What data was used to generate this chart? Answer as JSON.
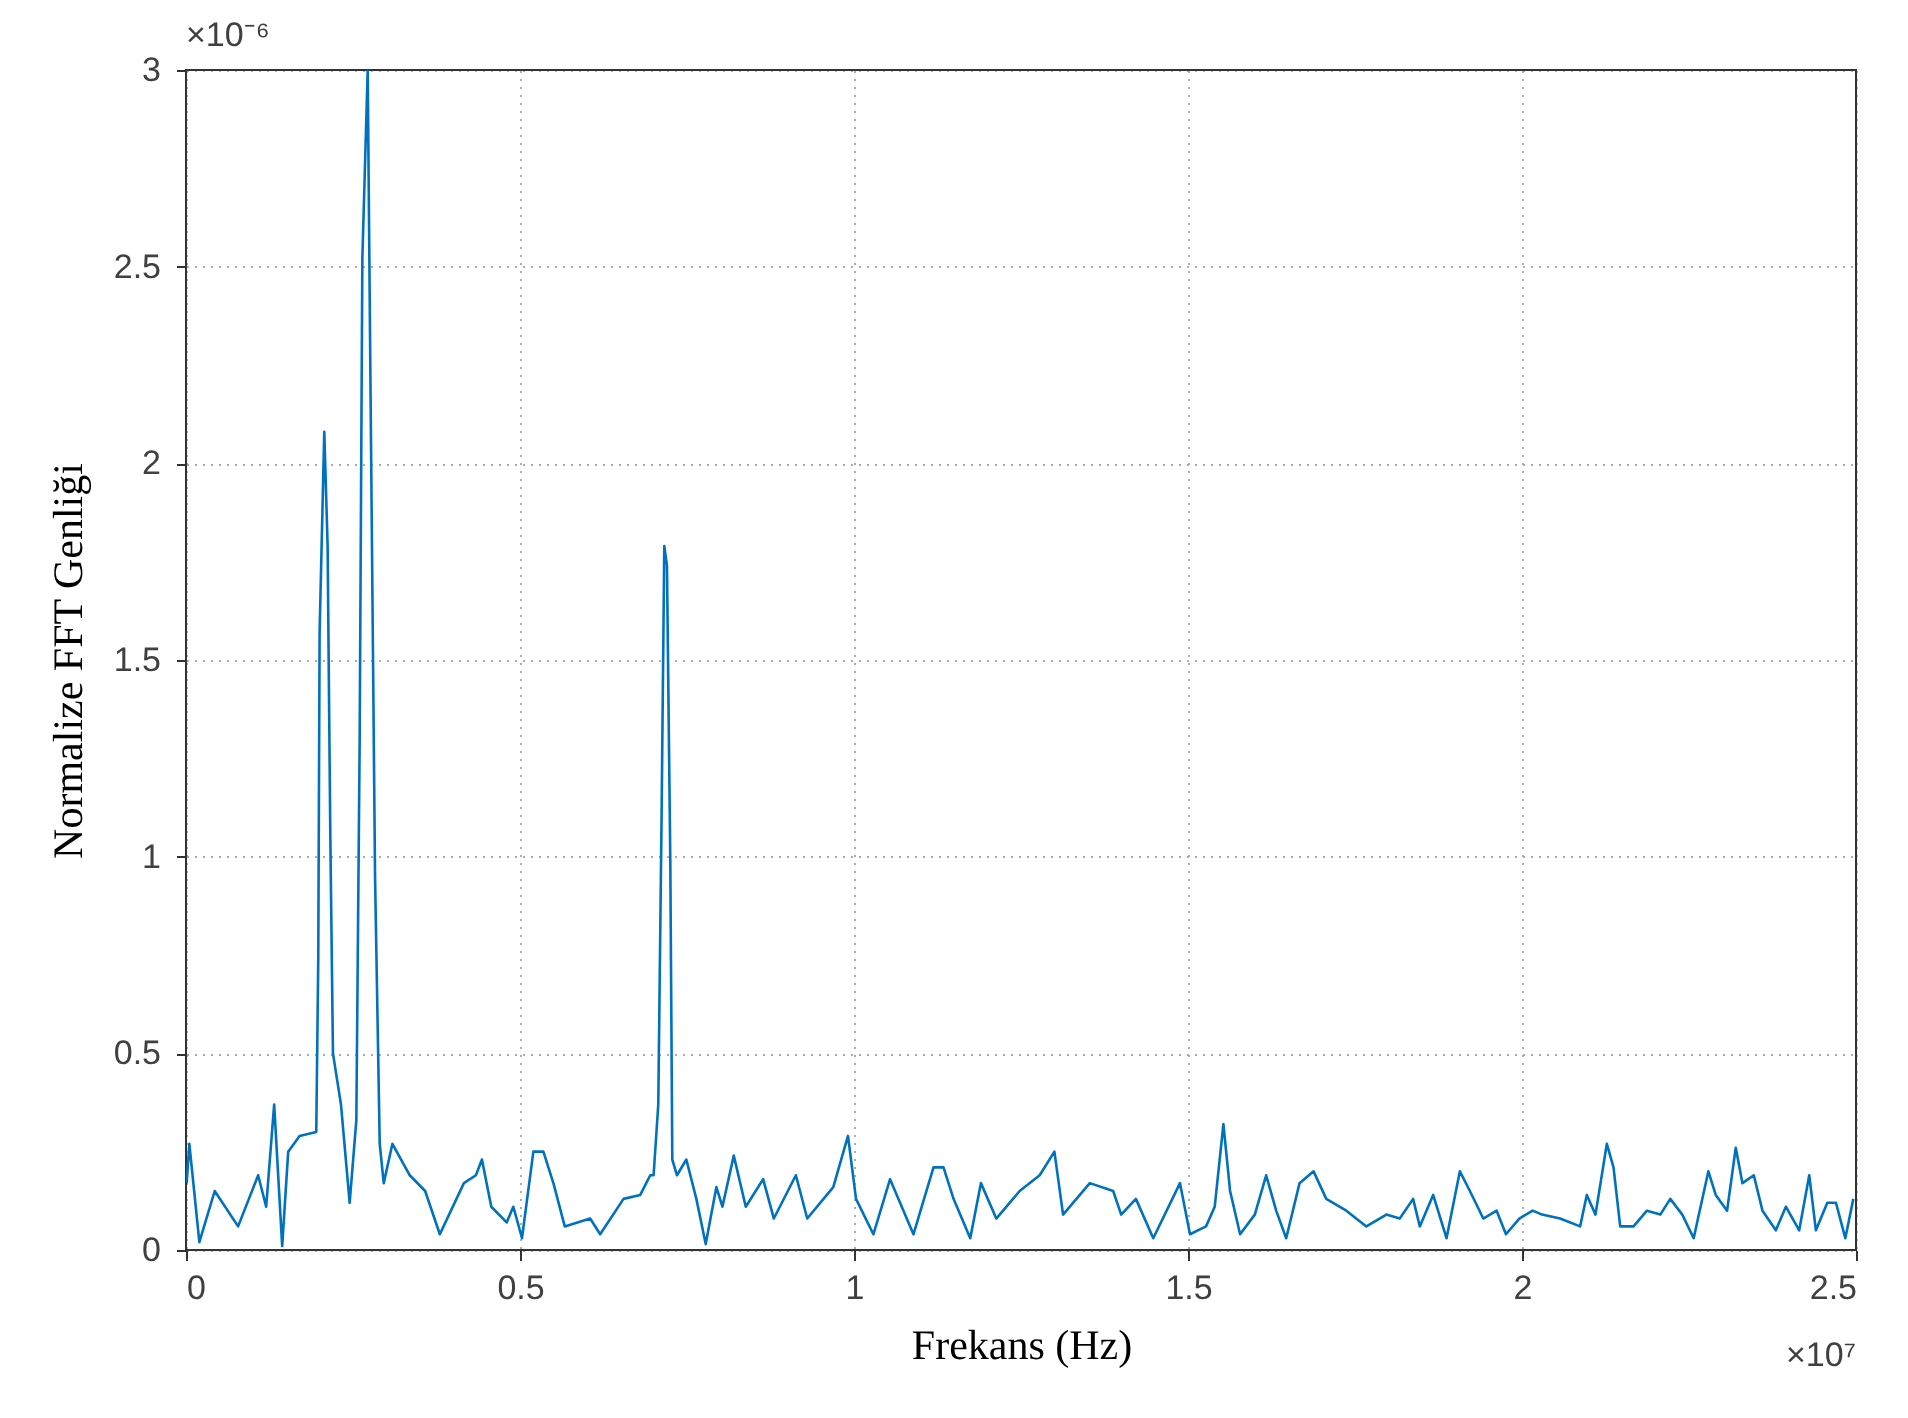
{
  "chart_data": {
    "type": "line",
    "xlabel": "Frekans (Hz)",
    "ylabel": "Normalize FFT Genliği",
    "annotations": [
      "×10⁻⁶",
      "×10⁷"
    ],
    "xlim": [
      0,
      2.5
    ],
    "xticks": [
      0,
      0.5,
      1,
      1.5,
      2,
      2.5
    ],
    "ylim": [
      0,
      3
    ],
    "yticks": [
      0,
      0.5,
      1,
      1.5,
      2,
      2.5,
      3
    ],
    "grid": true,
    "series": [
      {
        "color": "#0072bd",
        "x": [
          0.001,
          0.005,
          0.02,
          0.043,
          0.078,
          0.108,
          0.12,
          0.132,
          0.144,
          0.153,
          0.17,
          0.195,
          0.198,
          0.2,
          0.207,
          0.212,
          0.216,
          0.22,
          0.232,
          0.245,
          0.255,
          0.26,
          0.264,
          0.272,
          0.276,
          0.283,
          0.29,
          0.296,
          0.309,
          0.335,
          0.358,
          0.38,
          0.416,
          0.434,
          0.443,
          0.457,
          0.48,
          0.49,
          0.503,
          0.52,
          0.535,
          0.55,
          0.567,
          0.605,
          0.62,
          0.655,
          0.68,
          0.695,
          0.7,
          0.707,
          0.712,
          0.716,
          0.72,
          0.725,
          0.728,
          0.735,
          0.749,
          0.764,
          0.778,
          0.794,
          0.803,
          0.82,
          0.838,
          0.864,
          0.88,
          0.913,
          0.93,
          0.969,
          0.991,
          1.003,
          1.029,
          1.054,
          1.089,
          1.119,
          1.134,
          1.149,
          1.174,
          1.19,
          1.213,
          1.248,
          1.278,
          1.3,
          1.313,
          1.353,
          1.388,
          1.4,
          1.422,
          1.448,
          1.488,
          1.503,
          1.527,
          1.54,
          1.553,
          1.563,
          1.578,
          1.6,
          1.617,
          1.632,
          1.647,
          1.667,
          1.688,
          1.707,
          1.737,
          1.767,
          1.797,
          1.817,
          1.837,
          1.847,
          1.867,
          1.887,
          1.907,
          1.922,
          1.942,
          1.962,
          1.976,
          1.996,
          2.016,
          2.03,
          2.057,
          2.087,
          2.097,
          2.11,
          2.127,
          2.137,
          2.147,
          2.167,
          2.187,
          2.207,
          2.222,
          2.24,
          2.257,
          2.279,
          2.29,
          2.307,
          2.32,
          2.33,
          2.347,
          2.36,
          2.38,
          2.395,
          2.415,
          2.43,
          2.44,
          2.457,
          2.47,
          2.484,
          2.496
        ],
        "values": [
          0.17,
          0.27,
          0.02,
          0.15,
          0.06,
          0.19,
          0.11,
          0.37,
          0.01,
          0.25,
          0.29,
          0.3,
          0.74,
          1.57,
          2.08,
          1.79,
          1.06,
          0.5,
          0.37,
          0.12,
          0.33,
          1.3,
          2.52,
          3.0,
          2.23,
          0.95,
          0.27,
          0.17,
          0.27,
          0.19,
          0.15,
          0.04,
          0.17,
          0.19,
          0.23,
          0.11,
          0.07,
          0.11,
          0.03,
          0.25,
          0.25,
          0.17,
          0.06,
          0.08,
          0.04,
          0.13,
          0.14,
          0.19,
          0.19,
          0.37,
          1.11,
          1.79,
          1.74,
          0.99,
          0.23,
          0.19,
          0.23,
          0.13,
          0.015,
          0.16,
          0.11,
          0.24,
          0.11,
          0.18,
          0.08,
          0.19,
          0.08,
          0.16,
          0.29,
          0.13,
          0.04,
          0.18,
          0.04,
          0.21,
          0.21,
          0.13,
          0.03,
          0.17,
          0.08,
          0.15,
          0.19,
          0.25,
          0.09,
          0.17,
          0.15,
          0.09,
          0.13,
          0.03,
          0.17,
          0.04,
          0.06,
          0.11,
          0.32,
          0.15,
          0.04,
          0.09,
          0.19,
          0.1,
          0.03,
          0.17,
          0.2,
          0.13,
          0.1,
          0.06,
          0.09,
          0.08,
          0.13,
          0.06,
          0.14,
          0.03,
          0.2,
          0.15,
          0.08,
          0.1,
          0.04,
          0.08,
          0.1,
          0.09,
          0.08,
          0.06,
          0.14,
          0.09,
          0.27,
          0.21,
          0.06,
          0.06,
          0.1,
          0.09,
          0.13,
          0.09,
          0.03,
          0.2,
          0.14,
          0.1,
          0.26,
          0.17,
          0.19,
          0.1,
          0.05,
          0.11,
          0.05,
          0.19,
          0.05,
          0.12,
          0.12,
          0.03,
          0.13
        ]
      }
    ]
  }
}
